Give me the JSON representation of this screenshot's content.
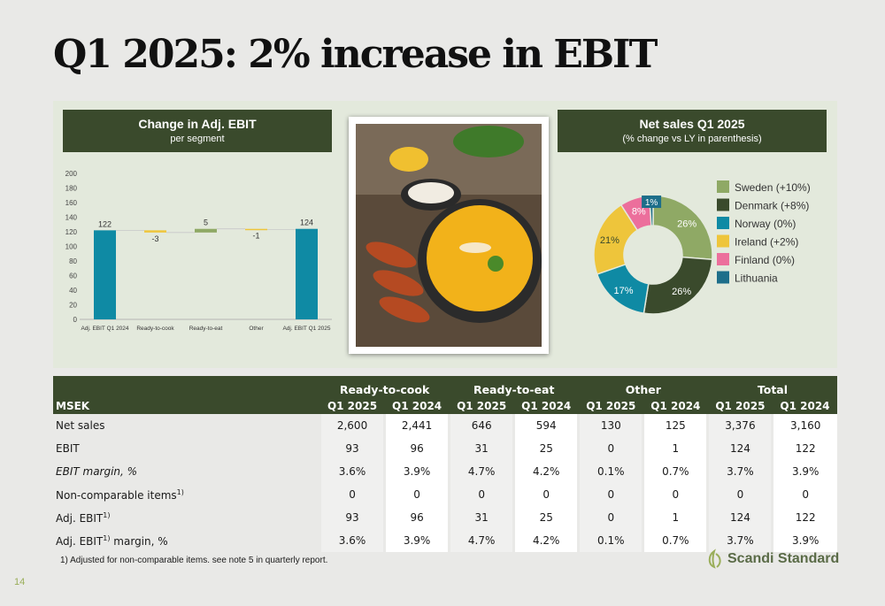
{
  "page": {
    "title": "Q1 2025: 2% increase in EBIT",
    "page_number": "14",
    "footnote": "1)    Adjusted for non-comparable items. see note 5 in quarterly report.",
    "logo": "Scandi Standard"
  },
  "colors": {
    "dark_green": "#3a4a2c",
    "teal": "#0f8aa4",
    "olive": "#8fa965",
    "yellow": "#eec53b",
    "pink": "#ec6f9c",
    "dark_teal": "#1d6e8a",
    "panel": "#e3e9dc"
  },
  "left_chart": {
    "title": "Change in Adj. EBIT",
    "subtitle": "per segment"
  },
  "right_chart": {
    "title": "Net sales Q1 2025",
    "subtitle": "(% change vs LY in parenthesis)"
  },
  "photo": {
    "alt": "Soup bowl with chicken skewers"
  },
  "chart_data": [
    {
      "type": "bar",
      "subtype": "waterfall",
      "title": "Change in Adj. EBIT",
      "subtitle": "per segment",
      "categories": [
        "Adj. EBIT Q1 2024",
        "Ready-to-cook",
        "Ready-to-eat",
        "Other",
        "Adj. EBIT Q1 2025"
      ],
      "values": [
        122,
        -3,
        5,
        -1,
        124
      ],
      "labels": [
        "122",
        "-3",
        "5",
        "-1",
        "124"
      ],
      "ylim": [
        0,
        200
      ],
      "yticks": [
        0,
        20,
        40,
        60,
        80,
        100,
        120,
        140,
        160,
        180,
        200
      ],
      "grid": false,
      "colors": [
        "#0f8aa4",
        "#eec53b",
        "#8fa965",
        "#eec53b",
        "#0f8aa4"
      ]
    },
    {
      "type": "pie",
      "subtype": "donut",
      "title": "Net sales Q1 2025",
      "subtitle": "(% change vs LY in parenthesis)",
      "legend_position": "right",
      "slices": [
        {
          "legend": "Sweden  (+10%)",
          "value": 26,
          "label": "26%",
          "color": "#8fa965"
        },
        {
          "legend": "Denmark (+8%)",
          "value": 26,
          "label": "26%",
          "color": "#3a4a2c"
        },
        {
          "legend": "Norway (0%)",
          "value": 17,
          "label": "17%",
          "color": "#0f8aa4"
        },
        {
          "legend": "Ireland (+2%)",
          "value": 21,
          "label": "21%",
          "color": "#eec53b"
        },
        {
          "legend": "Finland (0%)",
          "value": 8,
          "label": "8%",
          "color": "#ec6f9c"
        },
        {
          "legend": "Lithuania",
          "value": 1,
          "label": "1%",
          "color": "#1d6e8a"
        }
      ]
    },
    {
      "type": "table",
      "corner": "MSEK",
      "groups": [
        "Ready-to-cook",
        "Ready-to-eat",
        "Other",
        "Total"
      ],
      "columns": [
        "Q1 2025",
        "Q1 2024",
        "Q1 2025",
        "Q1 2024",
        "Q1 2025",
        "Q1 2024",
        "Q1 2025",
        "Q1 2024"
      ],
      "rows": [
        {
          "label": "Net sales",
          "sup": "",
          "suffix": "",
          "italic": false,
          "values": [
            "2,600",
            "2,441",
            "646",
            "594",
            "130",
            "125",
            "3,376",
            "3,160"
          ]
        },
        {
          "label": "EBIT",
          "sup": "",
          "suffix": "",
          "italic": false,
          "values": [
            "93",
            "96",
            "31",
            "25",
            "0",
            "1",
            "124",
            "122"
          ]
        },
        {
          "label": "EBIT margin, %",
          "sup": "",
          "suffix": "",
          "italic": true,
          "values": [
            "3.6%",
            "3.9%",
            "4.7%",
            "4.2%",
            "0.1%",
            "0.7%",
            "3.7%",
            "3.9%"
          ]
        },
        {
          "label": "Non-comparable items",
          "sup": "1)",
          "suffix": "",
          "italic": false,
          "values": [
            "0",
            "0",
            "0",
            "0",
            "0",
            "0",
            "0",
            "0"
          ]
        },
        {
          "label": "Adj. EBIT",
          "sup": "1)",
          "suffix": "",
          "italic": false,
          "values": [
            "93",
            "96",
            "31",
            "25",
            "0",
            "1",
            "124",
            "122"
          ]
        },
        {
          "label": "Adj. EBIT",
          "sup": "1)",
          "suffix": " margin, %",
          "italic": false,
          "values": [
            "3.6%",
            "3.9%",
            "4.7%",
            "4.2%",
            "0.1%",
            "0.7%",
            "3.7%",
            "3.9%"
          ]
        }
      ]
    }
  ]
}
